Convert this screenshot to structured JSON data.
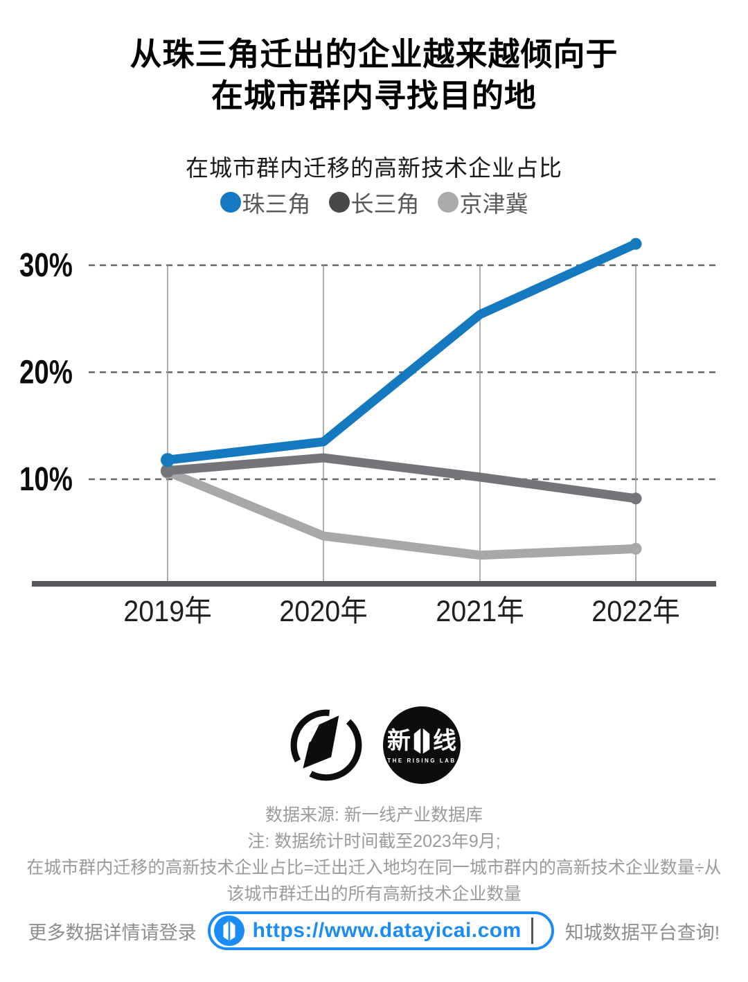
{
  "title": {
    "line1": "从珠三角迁出的企业越来越倾向于",
    "line2": "在城市群内寻找目的地"
  },
  "subtitle": "在城市群内迁移的高新技术企业占比",
  "legend": [
    {
      "label": "珠三角",
      "color": "#1579c0"
    },
    {
      "label": "长三角",
      "color": "#48484a"
    },
    {
      "label": "京津冀",
      "color": "#a9aaac"
    }
  ],
  "chart_data": {
    "type": "line",
    "title": "在城市群内迁移的高新技术企业占比",
    "categories": [
      "2019年",
      "2020年",
      "2021年",
      "2022年"
    ],
    "series": [
      {
        "name": "珠三角",
        "color": "#1579c0",
        "values": [
          11.8,
          13.5,
          25.4,
          32.0
        ]
      },
      {
        "name": "长三角",
        "color": "#747578",
        "values": [
          10.8,
          12.0,
          10.2,
          8.2
        ]
      },
      {
        "name": "京津冀",
        "color": "#a7a8aa",
        "values": [
          10.7,
          4.7,
          2.9,
          3.5
        ]
      }
    ],
    "ylabel": "",
    "yticks": [
      "10%",
      "20%",
      "30%"
    ],
    "ylim": [
      0,
      33
    ],
    "grid": "dashed horizontal gridlines at 10%, 20%, 30%; solid vertical line per year; legend top center"
  },
  "logos": {
    "rising_lab": {
      "cn_left": "新",
      "cn_right": "线",
      "sub": "THE RISING LAB"
    }
  },
  "footer": {
    "source": "数据来源: 新一线产业数据库",
    "note1": "注: 数据统计时间截至2023年9月;",
    "note2": "在城市群内迁移的高新技术企业占比=迁出迁入地均在同一城市群内的高新技术企业数量÷从",
    "note3": "该城市群迁出的所有高新技术企业数量"
  },
  "bottom_bar": {
    "left": "更多数据详情请登录",
    "url": "https://www.datayicai.com",
    "right": "知城数据平台查询!"
  }
}
